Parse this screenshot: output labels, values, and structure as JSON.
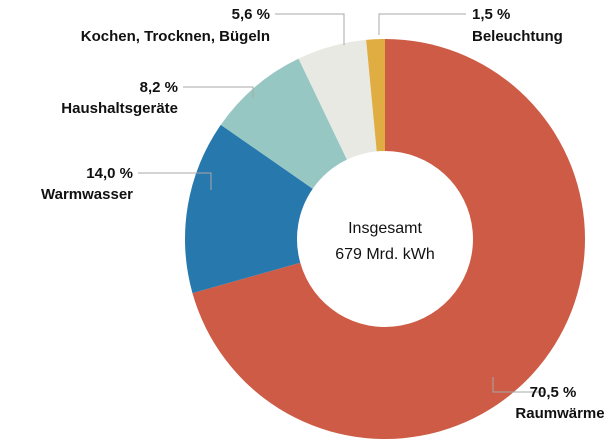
{
  "chart_data": {
    "type": "pie",
    "variant": "donut",
    "center_label": {
      "line1": "Insgesamt",
      "line2": "679 Mrd. kWh"
    },
    "slices": [
      {
        "name": "Raumwärme",
        "value_label": "70,5 %",
        "value": 70.5,
        "color": "#CD5B45"
      },
      {
        "name": "Warmwasser",
        "value_label": "14,0 %",
        "value": 14.0,
        "color": "#2778AD"
      },
      {
        "name": "Haushaltsgeräte",
        "value_label": "8,2 %",
        "value": 8.2,
        "color": "#97C7C3"
      },
      {
        "name": "Kochen, Trocknen, Bügeln",
        "value_label": "5,6 %",
        "value": 5.6,
        "color": "#E9E9E3"
      },
      {
        "name": "Beleuchtung",
        "value_label": "1,5 %",
        "value": 1.5,
        "color": "#E0AD43"
      }
    ]
  }
}
